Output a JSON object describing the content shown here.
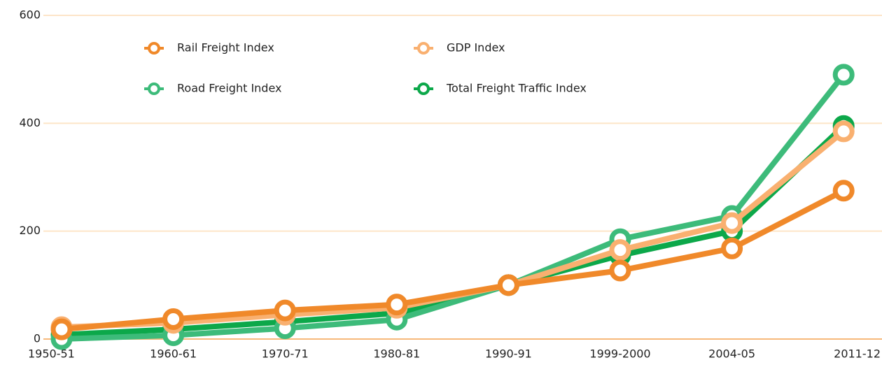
{
  "chart_data": {
    "type": "line",
    "categories": [
      "1950-51",
      "1960-61",
      "1970-71",
      "1980-81",
      "1990-91",
      "1999-2000",
      "2004-05",
      "2011-12"
    ],
    "series": [
      {
        "name": "Total Freight Traffic Index",
        "color": "#0ca84a",
        "values": [
          8,
          18,
          32,
          48,
          100,
          155,
          200,
          395
        ]
      },
      {
        "name": "Road Freight Index",
        "color": "#3dbb7a",
        "values": [
          0,
          7,
          20,
          36,
          100,
          185,
          228,
          490
        ]
      },
      {
        "name": "GDP Index",
        "color": "#f9b070",
        "values": [
          22,
          30,
          45,
          58,
          100,
          165,
          215,
          385
        ]
      },
      {
        "name": "Rail Freight Index",
        "color": "#f0892a",
        "values": [
          18,
          37,
          53,
          64,
          100,
          127,
          168,
          275
        ]
      }
    ],
    "ylim": [
      0,
      600
    ],
    "yticks": [
      0,
      200,
      400,
      600
    ],
    "grid": true
  }
}
